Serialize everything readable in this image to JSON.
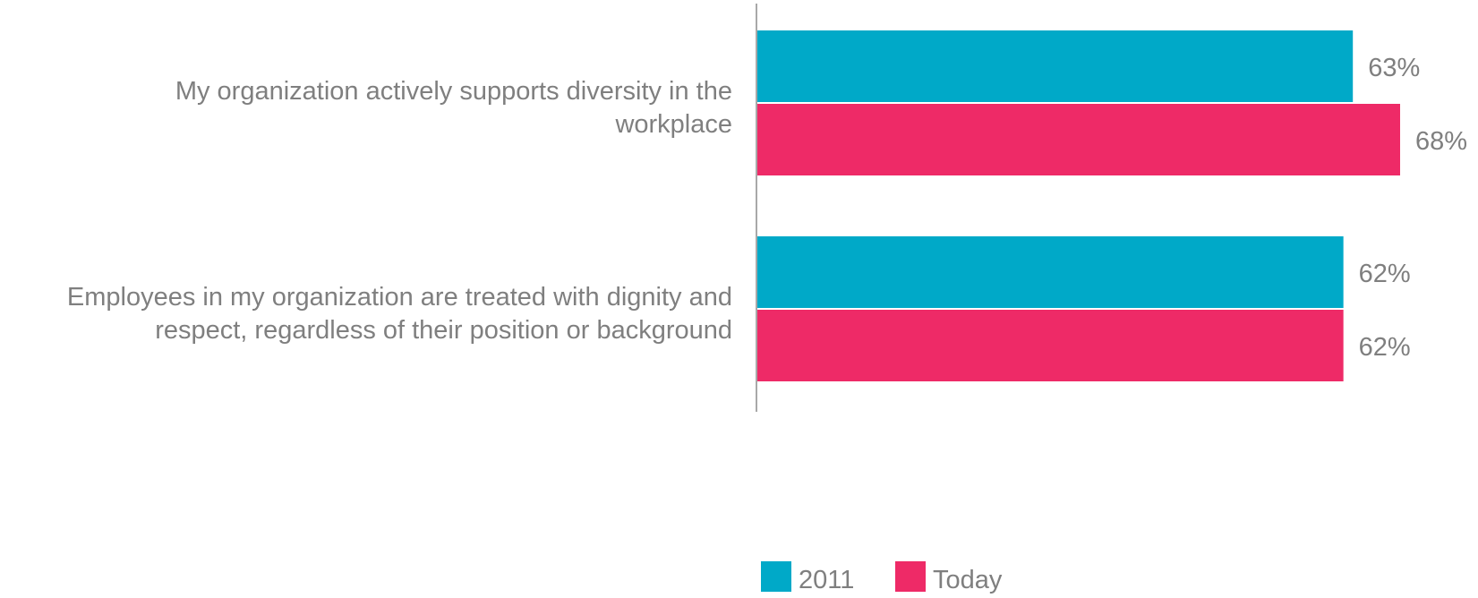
{
  "chart_data": {
    "type": "bar",
    "orientation": "horizontal",
    "categories": [
      [
        "My organization actively supports diversity in the",
        "workplace"
      ],
      [
        "Employees in my organization are treated with dignity and",
        "respect, regardless of their position or background"
      ]
    ],
    "series": [
      {
        "name": "2011",
        "color": "#00a9c8",
        "values": [
          63,
          62
        ],
        "labels": [
          "63%",
          "62%"
        ]
      },
      {
        "name": "Today",
        "color": "#ee2a67",
        "values": [
          68,
          62
        ],
        "labels": [
          "68%",
          "62%"
        ]
      }
    ],
    "xlim": [
      0,
      68
    ],
    "grid": false,
    "legend_position": "bottom-center"
  }
}
